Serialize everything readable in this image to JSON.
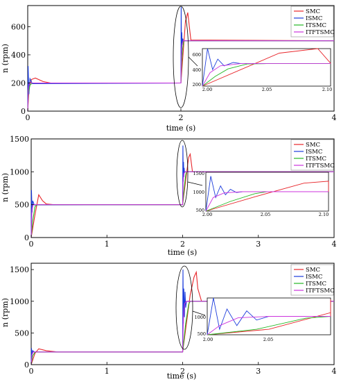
{
  "colors": {
    "SMC": "#e8252a",
    "ISMC": "#1c3cdc",
    "ITSMC": "#23b823",
    "ITFTSMC": "#cc33dd"
  },
  "chart_data": [
    {
      "type": "line",
      "xlabel": "time (s)",
      "ylabel": "n (rpm)",
      "xlim": [
        0,
        4
      ],
      "ylim": [
        0,
        750
      ],
      "xticks": [
        "0",
        "2",
        "4"
      ],
      "yticks": [
        "0",
        "200",
        "400",
        "600"
      ],
      "legend": [
        "SMC",
        "ISMC",
        "ITSMC",
        "ITFTSMC"
      ],
      "legend_position": "top-right",
      "series": [
        {
          "name": "SMC",
          "x": [
            0,
            0.02,
            0.05,
            0.1,
            0.2,
            0.3,
            2.0,
            2.03,
            2.06,
            2.09,
            2.13,
            4.0
          ],
          "y": [
            0,
            180,
            225,
            235,
            210,
            200,
            200,
            420,
            640,
            700,
            505,
            500
          ]
        },
        {
          "name": "ISMC",
          "x": [
            0,
            0.005,
            0.015,
            0.03,
            0.06,
            2.0,
            2.004,
            2.008,
            2.012,
            2.017,
            2.024,
            2.03,
            4.0
          ],
          "y": [
            0,
            320,
            120,
            230,
            195,
            200,
            740,
            420,
            560,
            470,
            515,
            500,
            500
          ]
        },
        {
          "name": "ITSMC",
          "x": [
            0,
            0.01,
            0.03,
            0.06,
            2.0,
            2.01,
            2.02,
            2.035,
            2.05,
            4.0
          ],
          "y": [
            0,
            130,
            185,
            200,
            200,
            330,
            430,
            495,
            500,
            500
          ]
        },
        {
          "name": "ITFTSMC",
          "x": [
            0,
            0.008,
            0.02,
            0.04,
            2.0,
            2.006,
            2.014,
            2.03,
            4.0
          ],
          "y": [
            0,
            150,
            195,
            200,
            200,
            380,
            470,
            500,
            500
          ]
        }
      ],
      "inset": {
        "xlim": [
          2.0,
          2.1
        ],
        "ylim": [
          200,
          700
        ],
        "xticks": [
          "2.00",
          "2.05",
          "2.10"
        ],
        "yticks": [
          "200",
          "400",
          "600"
        ]
      }
    },
    {
      "type": "line",
      "xlabel": "time (s)",
      "ylabel": "n (rpm)",
      "xlim": [
        0,
        4
      ],
      "ylim": [
        0,
        1500
      ],
      "xticks": [
        "0",
        "1",
        "2",
        "3",
        "4"
      ],
      "yticks": [
        "0",
        "500",
        "1000",
        "1500"
      ],
      "legend": [
        "SMC",
        "ISMC",
        "ITSMC",
        "ITFTSMC"
      ],
      "legend_position": "top-right",
      "series": [
        {
          "name": "SMC",
          "x": [
            0,
            0.05,
            0.1,
            0.15,
            0.2,
            0.3,
            2.0,
            2.04,
            2.08,
            2.1,
            2.13,
            4.0
          ],
          "y": [
            0,
            350,
            650,
            560,
            510,
            500,
            500,
            870,
            1220,
            1270,
            1000,
            1000
          ]
        },
        {
          "name": "ISMC",
          "x": [
            0,
            0.004,
            0.012,
            0.02,
            0.04,
            2.0,
            2.004,
            2.008,
            2.012,
            2.016,
            2.02,
            2.025,
            2.03,
            4.0
          ],
          "y": [
            0,
            720,
            380,
            560,
            495,
            500,
            1400,
            850,
            1150,
            920,
            1060,
            980,
            1000,
            1000
          ]
        },
        {
          "name": "ITSMC",
          "x": [
            0,
            0.02,
            0.05,
            0.08,
            2.0,
            2.02,
            2.04,
            2.05,
            4.0
          ],
          "y": [
            0,
            250,
            470,
            500,
            500,
            750,
            950,
            1000,
            1000
          ]
        },
        {
          "name": "ITFTSMC",
          "x": [
            0,
            0.01,
            0.025,
            0.04,
            2.0,
            2.006,
            2.015,
            2.03,
            4.0
          ],
          "y": [
            0,
            420,
            500,
            500,
            500,
            850,
            970,
            1000,
            1000
          ]
        }
      ],
      "inset": {
        "xlim": [
          2.0,
          2.1
        ],
        "ylim": [
          500,
          1500
        ],
        "xticks": [
          "2.00",
          "2.05",
          "2.10"
        ],
        "yticks": [
          "500",
          "1000",
          "1500"
        ]
      }
    },
    {
      "type": "line",
      "xlabel": "time (s)",
      "ylabel": "n (rpm)",
      "xlim": [
        0,
        4
      ],
      "ylim": [
        0,
        1600
      ],
      "xticks": [
        "0",
        "1",
        "2",
        "3",
        "4"
      ],
      "yticks": [
        "0",
        "500",
        "1000",
        "1500"
      ],
      "legend": [
        "SMC",
        "ISMC",
        "ITSMC",
        "ITFTSMC"
      ],
      "legend_position": "top-right",
      "series": [
        {
          "name": "SMC",
          "x": [
            0,
            0.05,
            0.1,
            0.2,
            0.35,
            2.0,
            2.05,
            2.1,
            2.15,
            2.18,
            2.2,
            2.25,
            4.0
          ],
          "y": [
            0,
            180,
            250,
            220,
            200,
            200,
            650,
            1100,
            1380,
            1460,
            1200,
            1000,
            1000
          ]
        },
        {
          "name": "ISMC",
          "x": [
            0,
            0.004,
            0.012,
            0.02,
            0.04,
            2.0,
            2.005,
            2.01,
            2.016,
            2.024,
            2.032,
            2.04,
            2.05,
            4.0
          ],
          "y": [
            0,
            260,
            160,
            220,
            200,
            200,
            1500,
            650,
            1200,
            750,
            1150,
            900,
            1000,
            1000
          ]
        },
        {
          "name": "ITSMC",
          "x": [
            0,
            0.02,
            0.05,
            0.08,
            2.0,
            2.04,
            2.08,
            2.1,
            4.0
          ],
          "y": [
            0,
            140,
            195,
            200,
            200,
            650,
            950,
            1000,
            1000
          ]
        },
        {
          "name": "ITFTSMC",
          "x": [
            0,
            0.01,
            0.025,
            0.04,
            2.0,
            2.01,
            2.025,
            2.05,
            4.0
          ],
          "y": [
            0,
            150,
            200,
            200,
            200,
            750,
            960,
            1000,
            1000
          ]
        }
      ],
      "inset": {
        "xlim": [
          2.0,
          2.1
        ],
        "ylim": [
          500,
          1500
        ],
        "xticks": [
          "2.00",
          "2.05"
        ],
        "yticks": [
          "500",
          "1000"
        ]
      }
    }
  ]
}
